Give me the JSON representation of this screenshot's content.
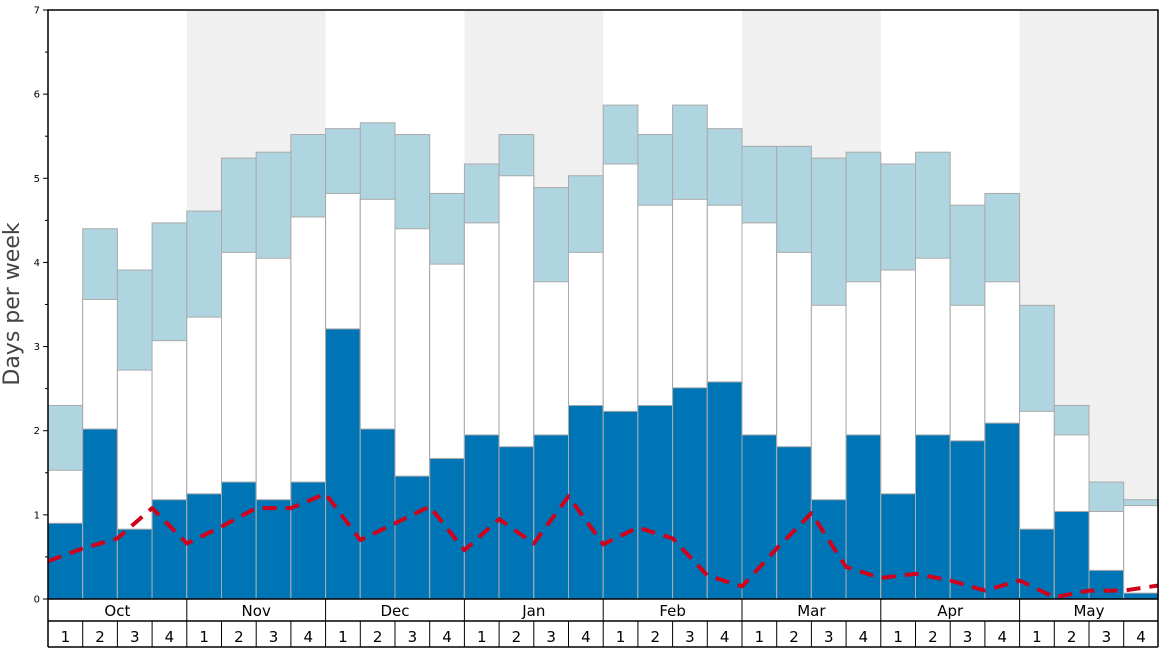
{
  "chart_data": {
    "type": "bar",
    "ylabel": "Days per week",
    "ylim": [
      0,
      7
    ],
    "yticks": [
      "0",
      "1",
      "2",
      "3",
      "4",
      "5",
      "6",
      "7"
    ],
    "months": [
      "Oct",
      "Nov",
      "Dec",
      "Jan",
      "Feb",
      "Mar",
      "Apr",
      "May"
    ],
    "week_labels": [
      "1",
      "2",
      "3",
      "4"
    ],
    "colors": {
      "bottom": "#0075b5",
      "middle": "#ffffff",
      "top": "#afd5e1",
      "line": "#d0021b",
      "shade": "#f0f0f1",
      "bar_edge": "#aaaaaa"
    },
    "series": [
      {
        "name": "dark blue",
        "values": [
          0.9,
          2.02,
          0.83,
          1.18,
          1.25,
          1.39,
          1.18,
          1.39,
          3.21,
          2.02,
          1.46,
          1.67,
          1.95,
          1.81,
          1.95,
          2.3,
          2.23,
          2.3,
          2.51,
          2.58,
          1.95,
          1.81,
          1.18,
          1.95,
          1.25,
          1.95,
          1.88,
          2.09,
          0.83,
          1.04,
          0.34,
          0.07
        ]
      },
      {
        "name": "white",
        "values": [
          1.53,
          3.56,
          2.72,
          3.07,
          3.35,
          4.12,
          4.05,
          4.54,
          4.82,
          4.75,
          4.4,
          3.98,
          4.47,
          5.03,
          3.77,
          4.12,
          5.17,
          4.68,
          4.75,
          4.68,
          4.47,
          4.12,
          3.49,
          3.77,
          3.91,
          4.05,
          3.49,
          3.77,
          2.23,
          1.95,
          1.04,
          1.11
        ]
      },
      {
        "name": "light blue",
        "values": [
          2.3,
          4.4,
          3.91,
          4.47,
          4.61,
          5.24,
          5.31,
          5.52,
          5.59,
          5.66,
          5.52,
          4.82,
          5.17,
          5.52,
          4.89,
          5.03,
          5.87,
          5.52,
          5.87,
          5.59,
          5.38,
          5.38,
          5.24,
          5.31,
          5.17,
          5.31,
          4.68,
          4.82,
          3.49,
          2.3,
          1.39,
          1.18
        ]
      },
      {
        "name": "red dashed",
        "values": [
          0.45,
          0.6,
          0.72,
          1.08,
          0.66,
          0.86,
          1.08,
          1.08,
          1.25,
          0.7,
          0.9,
          1.1,
          0.58,
          0.95,
          0.66,
          1.22,
          0.65,
          0.85,
          0.72,
          0.28,
          0.15,
          0.6,
          1.02,
          0.38,
          0.25,
          0.3,
          0.22,
          0.1,
          0.22,
          0.02,
          0.1,
          0.1,
          0.16
        ]
      }
    ]
  }
}
